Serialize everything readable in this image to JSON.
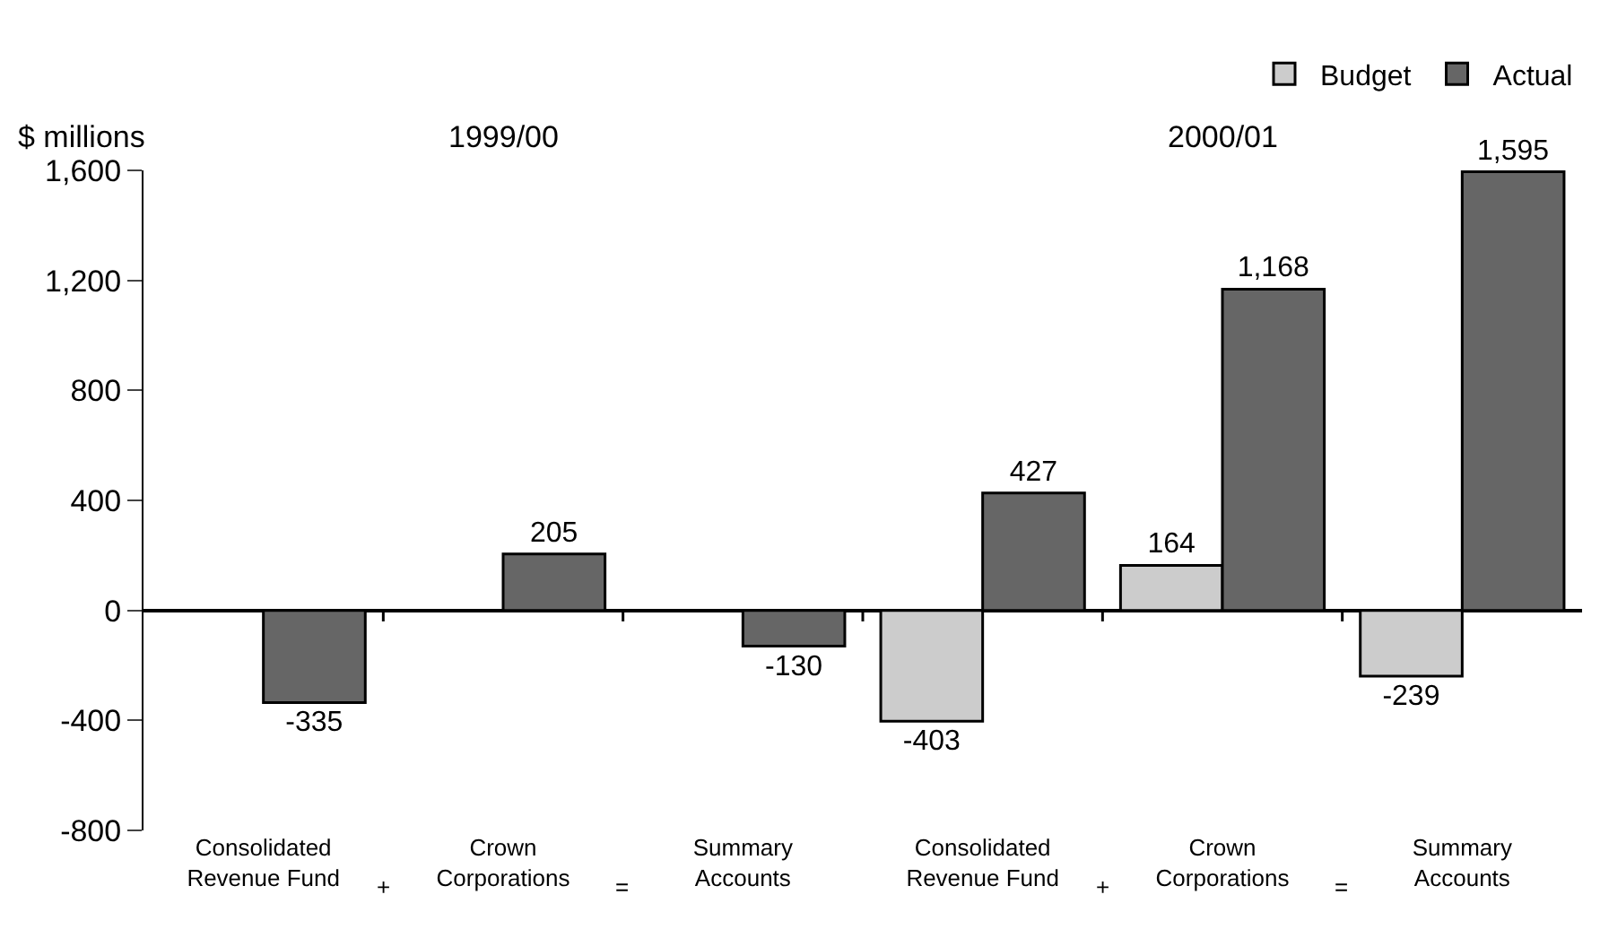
{
  "chart_data": {
    "type": "bar",
    "ylabel": "$ millions",
    "categories": [
      "Consolidated\nRevenue Fund",
      "Crown\nCorporations",
      "Summary\nAccounts",
      "Consolidated\nRevenue Fund",
      "Crown\nCorporations",
      "Summary\nAccounts"
    ],
    "series": [
      {
        "name": "Budget",
        "color": "#cccccc",
        "values": [
          null,
          null,
          null,
          -403,
          164,
          -239
        ],
        "value_labels": [
          null,
          null,
          null,
          "-403",
          "164",
          "-239"
        ]
      },
      {
        "name": "Actual",
        "color": "#666666",
        "values": [
          -335,
          205,
          -130,
          427,
          1168,
          1595
        ],
        "value_labels": [
          "-335",
          "205",
          "-130",
          "427",
          "1,168",
          "1,595"
        ]
      }
    ],
    "ylim": [
      -800,
      1600
    ],
    "yticks": [
      {
        "value": -800,
        "label": "-800"
      },
      {
        "value": -400,
        "label": "-400"
      },
      0,
      {
        "value": 400,
        "label": "400"
      },
      {
        "value": 800,
        "label": "800"
      },
      {
        "value": 1200,
        "label": "1,200"
      },
      {
        "value": 1600,
        "label": "1,600"
      }
    ],
    "annotations": [
      "1999/00",
      "2000/01",
      "+",
      "=",
      "+",
      "="
    ],
    "legend": "top right"
  }
}
